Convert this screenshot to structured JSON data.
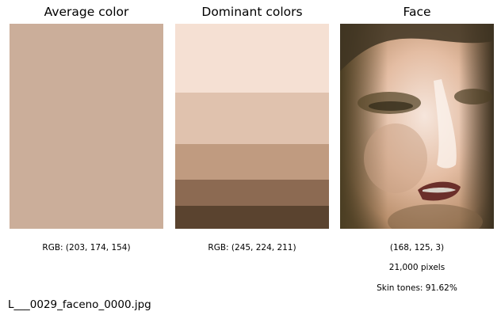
{
  "panels": {
    "average": {
      "title": "Average color",
      "color": "#cbae9a",
      "caption": "RGB: (203, 174, 154)"
    },
    "dominant": {
      "title": "Dominant colors",
      "caption": "RGB: (245, 224, 211)",
      "bands": [
        {
          "color": "#f5e0d3",
          "share": 0.336
        },
        {
          "color": "#e0c2ae",
          "share": 0.251
        },
        {
          "color": "#c09b80",
          "share": 0.174
        },
        {
          "color": "#8c6a52",
          "share": 0.127
        },
        {
          "color": "#5a432f",
          "share": 0.112
        }
      ]
    },
    "face": {
      "title": "Face",
      "caption_color": "(168, 125, 3)",
      "caption_pixels": "21,000 pixels",
      "caption_skin": "Skin tones: 91.62%"
    }
  },
  "footer": {
    "filename": "L___0029_faceno_0000.jpg"
  }
}
